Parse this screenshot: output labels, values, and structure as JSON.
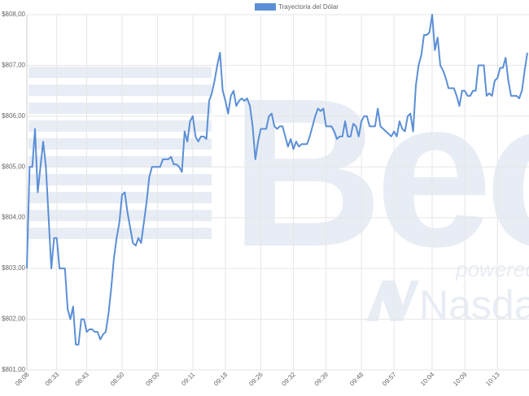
{
  "chart_data": {
    "type": "line",
    "watermark": [
      "Bec",
      "powered",
      "Nasda"
    ],
    "categories": [
      "08:08",
      null,
      null,
      null,
      null,
      null,
      null,
      null,
      null,
      null,
      null,
      "08:33",
      null,
      null,
      null,
      null,
      null,
      null,
      null,
      null,
      null,
      null,
      "08:43",
      null,
      null,
      null,
      null,
      null,
      null,
      null,
      null,
      null,
      null,
      null,
      null,
      "08:50",
      null,
      null,
      null,
      null,
      null,
      null,
      null,
      null,
      null,
      null,
      null,
      null,
      "09:00",
      null,
      null,
      null,
      null,
      null,
      null,
      null,
      null,
      null,
      null,
      null,
      null,
      "09:11",
      null,
      null,
      null,
      null,
      null,
      null,
      null,
      null,
      null,
      null,
      null,
      "09:18",
      null,
      null,
      null,
      null,
      null,
      null,
      null,
      null,
      null,
      null,
      null,
      null,
      "09:26",
      null,
      null,
      null,
      null,
      null,
      null,
      null,
      null,
      null,
      null,
      null,
      "09:32",
      null,
      null,
      null,
      null,
      null,
      null,
      null,
      null,
      null,
      null,
      null,
      "09:39",
      null,
      null,
      null,
      null,
      null,
      null,
      null,
      null,
      null,
      null,
      null,
      null,
      "09:48",
      null,
      null,
      null,
      null,
      null,
      null,
      null,
      null,
      null,
      null,
      null,
      "09:57",
      null,
      null,
      null,
      null,
      null,
      null,
      null,
      null,
      null,
      null,
      null,
      null,
      null,
      "10:04",
      null,
      null,
      null,
      null,
      null,
      null,
      null,
      null,
      null,
      null,
      null,
      "10:09",
      null,
      null,
      null,
      null,
      null,
      null,
      null,
      null,
      null,
      null,
      null,
      "10:13",
      null,
      null,
      null,
      null,
      null,
      null,
      null,
      null,
      null,
      null,
      null
    ],
    "series": [
      {
        "name": "Trayectoria del Dólar",
        "color": "#5b8fd6",
        "values": [
          803.0,
          805.0,
          805.0,
          805.75,
          804.5,
          805.0,
          805.5,
          805.0,
          804.0,
          803.0,
          803.6,
          803.6,
          803.0,
          803.0,
          803.0,
          802.2,
          802.0,
          802.25,
          801.5,
          801.5,
          802.0,
          802.0,
          801.75,
          801.8,
          801.8,
          801.75,
          801.75,
          801.6,
          801.7,
          801.75,
          802.1,
          802.6,
          803.2,
          803.6,
          803.9,
          804.45,
          804.5,
          804.1,
          803.8,
          803.5,
          803.45,
          803.6,
          803.5,
          803.9,
          804.3,
          804.8,
          805.0,
          805.0,
          805.0,
          805.0,
          805.15,
          805.15,
          805.15,
          805.2,
          805.05,
          805.05,
          805.0,
          804.9,
          805.7,
          805.5,
          805.9,
          806.0,
          805.6,
          805.5,
          805.6,
          805.6,
          805.55,
          806.3,
          806.45,
          806.7,
          807.0,
          807.25,
          806.5,
          806.3,
          806.05,
          806.4,
          806.5,
          806.2,
          806.3,
          806.35,
          806.3,
          806.35,
          806.2,
          805.8,
          805.15,
          805.5,
          805.75,
          805.75,
          805.75,
          806.0,
          806.05,
          805.8,
          805.75,
          805.8,
          805.8,
          805.6,
          805.4,
          805.55,
          805.35,
          805.5,
          805.4,
          805.45,
          805.45,
          805.45,
          805.6,
          805.8,
          806.0,
          806.15,
          806.1,
          806.15,
          805.8,
          805.8,
          805.8,
          805.7,
          805.55,
          805.6,
          805.6,
          805.9,
          805.6,
          805.6,
          805.85,
          805.8,
          805.6,
          805.9,
          806.0,
          806.0,
          805.8,
          805.8,
          805.8,
          806.15,
          805.8,
          805.75,
          805.7,
          805.65,
          805.6,
          805.7,
          805.6,
          805.9,
          805.75,
          805.7,
          806.0,
          806.05,
          805.7,
          806.6,
          807.0,
          807.2,
          807.6,
          807.6,
          807.65,
          808.0,
          807.3,
          807.55,
          807.0,
          806.9,
          806.75,
          806.55,
          806.55,
          806.55,
          806.4,
          806.2,
          806.5,
          806.5,
          806.4,
          806.4,
          806.5,
          806.5,
          807.0,
          807.0,
          807.0,
          806.4,
          806.45,
          806.4,
          806.7,
          806.75,
          806.95,
          806.95,
          807.15,
          806.7,
          806.4,
          806.4,
          806.4,
          806.35,
          806.5,
          806.9,
          807.25
        ]
      }
    ],
    "ylim": [
      801,
      808
    ],
    "yticks": [
      {
        "value": 801,
        "label": "$801,00"
      },
      {
        "value": 802,
        "label": "$802,00"
      },
      {
        "value": 803,
        "label": "$803,00"
      },
      {
        "value": 804,
        "label": "$804,00"
      },
      {
        "value": 805,
        "label": "$805,00"
      },
      {
        "value": 806,
        "label": "$806,00"
      },
      {
        "value": 807,
        "label": "$807,00"
      },
      {
        "value": 808,
        "label": "$808,00"
      }
    ],
    "grid": true,
    "legend": "top"
  }
}
